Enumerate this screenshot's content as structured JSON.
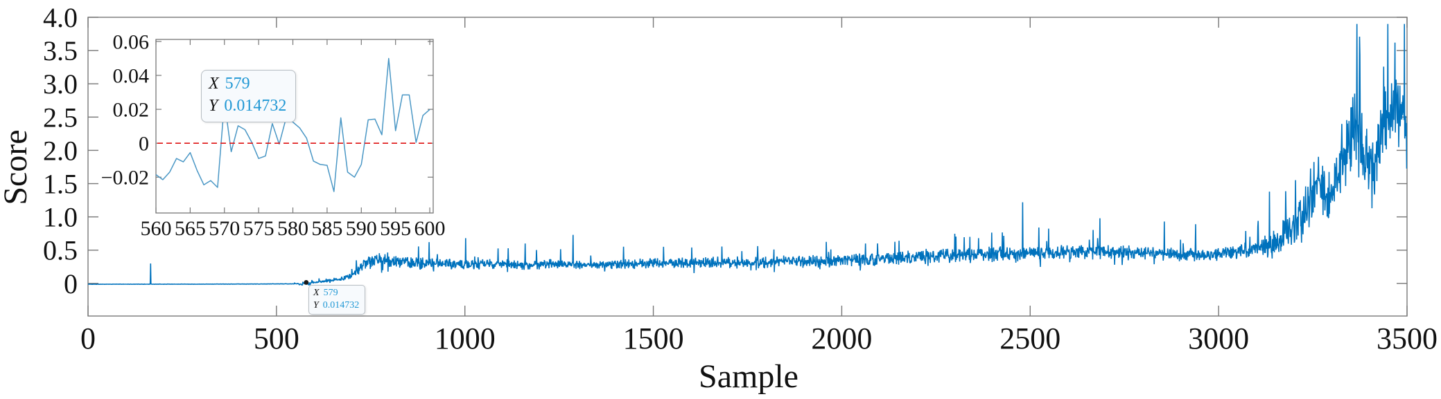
{
  "figure": {
    "background": "#ffffff",
    "axis_color": "#777777",
    "text_color": "#111111"
  },
  "datatip": {
    "x_label": "X",
    "y_label": "Y",
    "x_value": "579",
    "y_value": "0.014732",
    "value_color": "#1f97d4"
  },
  "chart_data": [
    {
      "id": "main",
      "type": "line",
      "title": "",
      "xlabel": "Sample",
      "ylabel": "Score",
      "xlim": [
        0,
        3500
      ],
      "ylim": [
        -0.49,
        4.0
      ],
      "grid": false,
      "box": true,
      "tick_dir": "in",
      "xticks": [
        0,
        500,
        1000,
        1500,
        2000,
        2500,
        3000,
        3500
      ],
      "xtick_labels": [
        "0",
        "500",
        "1000",
        "1500",
        "2000",
        "2500",
        "3000",
        "3500"
      ],
      "yticks": [
        0,
        0.5,
        1,
        1.5,
        2,
        2.5,
        3,
        3.5,
        4
      ],
      "ytick_labels": [
        "0",
        "0.5",
        "1.0",
        "1.5",
        "2.0",
        "2.5",
        "3.0",
        "3.5",
        "4.0"
      ],
      "line_color": "#0072BD",
      "marked_point": {
        "x": 579,
        "y": 0.014732
      },
      "series_note": "Dense per-sample noisy score trace, reconstructed from trend_anchors [sample, mean, noise_half_amplitude], isolated spikes [sample, value], and the exact samples 560-600 given in the inset chart points. Flat near -0.01 for samples 0-550, onset rise ~550-750, noisy plateau ~0.3-0.47 until ~3100, steep noisy climb peaking ~3.6 near sample 3470.",
      "trend_anchors": [
        [
          0,
          -0.012,
          0.003
        ],
        [
          300,
          -0.011,
          0.003
        ],
        [
          540,
          -0.007,
          0.004
        ],
        [
          565,
          0.0,
          0.009
        ],
        [
          590,
          0.008,
          0.012
        ],
        [
          620,
          0.028,
          0.018
        ],
        [
          660,
          0.06,
          0.028
        ],
        [
          695,
          0.1,
          0.045
        ],
        [
          715,
          0.18,
          0.07
        ],
        [
          735,
          0.3,
          0.1
        ],
        [
          760,
          0.36,
          0.11
        ],
        [
          800,
          0.33,
          0.095
        ],
        [
          900,
          0.3,
          0.08
        ],
        [
          1100,
          0.29,
          0.075
        ],
        [
          1300,
          0.28,
          0.075
        ],
        [
          1500,
          0.3,
          0.08
        ],
        [
          1700,
          0.31,
          0.085
        ],
        [
          1900,
          0.33,
          0.09
        ],
        [
          2100,
          0.37,
          0.1
        ],
        [
          2300,
          0.42,
          0.11
        ],
        [
          2500,
          0.46,
          0.12
        ],
        [
          2700,
          0.47,
          0.11
        ],
        [
          2850,
          0.45,
          0.1
        ],
        [
          2950,
          0.42,
          0.095
        ],
        [
          3030,
          0.46,
          0.11
        ],
        [
          3090,
          0.52,
          0.13
        ],
        [
          3150,
          0.62,
          0.18
        ],
        [
          3200,
          0.85,
          0.3
        ],
        [
          3240,
          1.2,
          0.45
        ],
        [
          3265,
          1.55,
          0.5
        ],
        [
          3295,
          1.25,
          0.4
        ],
        [
          3325,
          1.85,
          0.5
        ],
        [
          3360,
          2.3,
          0.55
        ],
        [
          3385,
          2.0,
          0.6
        ],
        [
          3410,
          1.6,
          0.55
        ],
        [
          3440,
          2.5,
          0.5
        ],
        [
          3468,
          2.75,
          0.55
        ],
        [
          3490,
          2.45,
          0.55
        ],
        [
          3500,
          2.0,
          0.45
        ]
      ],
      "spikes": [
        [
          166,
          0.3
        ],
        [
          905,
          0.62
        ],
        [
          1002,
          0.68
        ],
        [
          1160,
          0.6
        ],
        [
          1287,
          0.73
        ],
        [
          1602,
          0.54
        ],
        [
          2063,
          0.6
        ],
        [
          2340,
          0.7
        ],
        [
          2480,
          1.22
        ],
        [
          2523,
          0.84
        ],
        [
          2685,
          0.98
        ],
        [
          2856,
          0.93
        ],
        [
          2939,
          0.89
        ],
        [
          3135,
          1.38
        ],
        [
          3468,
          3.62
        ]
      ]
    },
    {
      "id": "inset",
      "type": "line",
      "title": "",
      "xlabel": "",
      "ylabel": "",
      "xlim": [
        560,
        600.5
      ],
      "ylim": [
        -0.0411,
        0.0612
      ],
      "grid": false,
      "box": true,
      "tick_dir": "in",
      "xticks": [
        560,
        565,
        570,
        575,
        580,
        585,
        590,
        595,
        600
      ],
      "xtick_labels": [
        "560",
        "565",
        "570",
        "575",
        "580",
        "585",
        "590",
        "595",
        "600"
      ],
      "yticks": [
        -0.02,
        0,
        0.02,
        0.04,
        0.06
      ],
      "ytick_labels": [
        "−0.02",
        "0",
        "0.02",
        "0.04",
        "0.06"
      ],
      "line_color": "#4a97c5",
      "zero_line": {
        "y": 0,
        "color": "#e02020",
        "style": "dashed"
      },
      "marked_point": {
        "x": 579,
        "y": 0.014732
      },
      "points": [
        [
          560,
          -0.0185
        ],
        [
          561,
          -0.0215
        ],
        [
          562,
          -0.017
        ],
        [
          563,
          -0.009
        ],
        [
          564,
          -0.011
        ],
        [
          565,
          -0.0055
        ],
        [
          566,
          -0.016
        ],
        [
          567,
          -0.0245
        ],
        [
          568,
          -0.022
        ],
        [
          569,
          -0.026
        ],
        [
          570,
          0.0245
        ],
        [
          571,
          -0.005
        ],
        [
          572,
          0.0103
        ],
        [
          573,
          0.008
        ],
        [
          574,
          0.0005
        ],
        [
          575,
          -0.009
        ],
        [
          576,
          -0.0075
        ],
        [
          577,
          0.0116
        ],
        [
          578,
          -0.0005
        ],
        [
          579,
          0.014732
        ],
        [
          580,
          0.0125
        ],
        [
          581,
          0.009
        ],
        [
          582,
          0.003
        ],
        [
          583,
          -0.0105
        ],
        [
          584,
          -0.0125
        ],
        [
          585,
          -0.013
        ],
        [
          586,
          -0.0285
        ],
        [
          587,
          0.015
        ],
        [
          588,
          -0.017
        ],
        [
          589,
          -0.02
        ],
        [
          590,
          -0.0125
        ],
        [
          591,
          0.0138
        ],
        [
          592,
          0.0142
        ],
        [
          593,
          0.005
        ],
        [
          594,
          0.05
        ],
        [
          595,
          0.0074
        ],
        [
          596,
          0.0285
        ],
        [
          597,
          0.0285
        ],
        [
          598,
          0.0005
        ],
        [
          599,
          0.0164
        ],
        [
          600,
          0.0199
        ]
      ]
    }
  ]
}
